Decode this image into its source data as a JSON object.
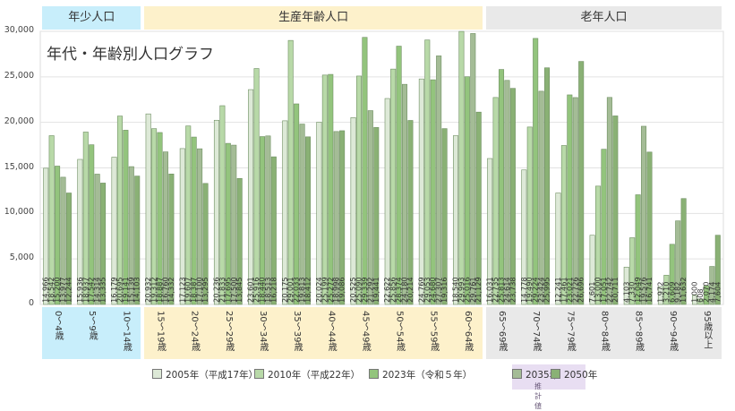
{
  "chart_data": {
    "type": "bar",
    "title": "年代・年齢別人口グラフ",
    "bands": [
      {
        "label": "年少人口",
        "from": 0,
        "to": 2,
        "color": "#c8eefb"
      },
      {
        "label": "生産年齢人口",
        "from": 3,
        "to": 12,
        "color": "#fdf1cb"
      },
      {
        "label": "老年人口",
        "from": 13,
        "to": 19,
        "color": "#e9e9e9"
      }
    ],
    "categories": [
      "0～4歳",
      "5～9歳",
      "10～14歳",
      "15～19歳",
      "20～24歳",
      "25～29歳",
      "30～34歳",
      "35～39歳",
      "40～44歳",
      "45～49歳",
      "50～54歳",
      "55～59歳",
      "60～64歳",
      "65～69歳",
      "70～74歳",
      "75～79歳",
      "80～84歳",
      "85～89歳",
      "90～94歳",
      "95歳以上"
    ],
    "series": [
      {
        "name": "2005年（平成17年）",
        "color": "#dde9d7",
        "values": [
          14966,
          15936,
          16179,
          20932,
          17123,
          20236,
          23601,
          20175,
          20024,
          20525,
          22622,
          24769,
          18540,
          16031,
          14778,
          12241,
          7601,
          4103,
          1972,
          1000
        ],
        "labels": [
          "14,966",
          "15,936",
          "16,179",
          "20,932",
          "17,123",
          "20,236",
          "23,601",
          "20,175",
          "20,024",
          "20,525",
          "22,622",
          "24,769",
          "18,540",
          "16,031",
          "14,778",
          "12,241",
          "7,601",
          "4,103",
          "1,972",
          "1,000"
        ]
      },
      {
        "name": "2010年（平成22年）",
        "color": "#b8d9a8",
        "values": [
          18542,
          18937,
          20695,
          19312,
          19607,
          21833,
          25916,
          29001,
          25199,
          25090,
          25856,
          29053,
          29993,
          22735,
          19490,
          17461,
          13000,
          7330,
          3210,
          608
        ],
        "labels": [
          "18,542",
          "18,937",
          "20,695",
          "19,312",
          "19,607",
          "21,833",
          "25,916",
          "29,001",
          "25,199",
          "25,090",
          "25,856",
          "29,053",
          "29,993",
          "22,735",
          "19,490",
          "17,461",
          "13,000",
          "7,330",
          "3,210",
          "608"
        ]
      },
      {
        "name": "2023年（令和５年）",
        "color": "#93c47d",
        "values": [
          15200,
          17542,
          19141,
          18887,
          18387,
          17695,
          18440,
          22033,
          25272,
          29339,
          28374,
          24680,
          25016,
          25813,
          29224,
          23021,
          17051,
          12049,
          6609,
          2070
        ],
        "labels": [
          "15,200",
          "17,542",
          "19,141",
          "18,887",
          "18,387",
          "17,695",
          "18,440",
          "22,033",
          "25,272",
          "29,339",
          "28,374",
          "24,680",
          "25,016",
          "25,813",
          "29,224",
          "23,021",
          "17,051",
          "12,049",
          "6,609",
          "2,070"
        ]
      },
      {
        "name": "2035年",
        "color": "#a4bc96",
        "values": [
          13977,
          14314,
          15139,
          16760,
          17100,
          17500,
          18513,
          19813,
          18998,
          21292,
          24180,
          27307,
          29761,
          24614,
          23424,
          22726,
          22742,
          19576,
          9182,
          4174
        ],
        "labels": [
          "13,977",
          "14,314",
          "15,139",
          "16,760",
          "17,100",
          "17,500",
          "18,513",
          "19,813",
          "18,998",
          "21,292",
          "24,180",
          "27,307",
          "29,761",
          "24,614",
          "23,424",
          "22,726",
          "22,742",
          "19,576",
          "9,182",
          "4,174"
        ]
      },
      {
        "name": "2050年",
        "color": "#8ab175",
        "values": [
          12244,
          13335,
          14103,
          14332,
          13295,
          13845,
          16218,
          18412,
          19086,
          19441,
          20214,
          19316,
          21129,
          23738,
          25995,
          26696,
          20711,
          16741,
          11632,
          7604
        ],
        "labels": [
          "12,244",
          "13,335",
          "14,103",
          "14,332",
          "13,295",
          "13,845",
          "16,218",
          "18,412",
          "19,086",
          "19,441",
          "20,214",
          "19,316",
          "21,129",
          "23,738",
          "25,995",
          "26,696",
          "20,711",
          "16,741",
          "11,632",
          "7,604"
        ]
      }
    ],
    "ylim": [
      0,
      30000
    ],
    "yticks": [
      "0",
      "5,000",
      "10,000",
      "15,000",
      "20,000",
      "25,000",
      "30,000"
    ],
    "forecast_note": "推計値",
    "grid": true,
    "legend": "bottom"
  }
}
